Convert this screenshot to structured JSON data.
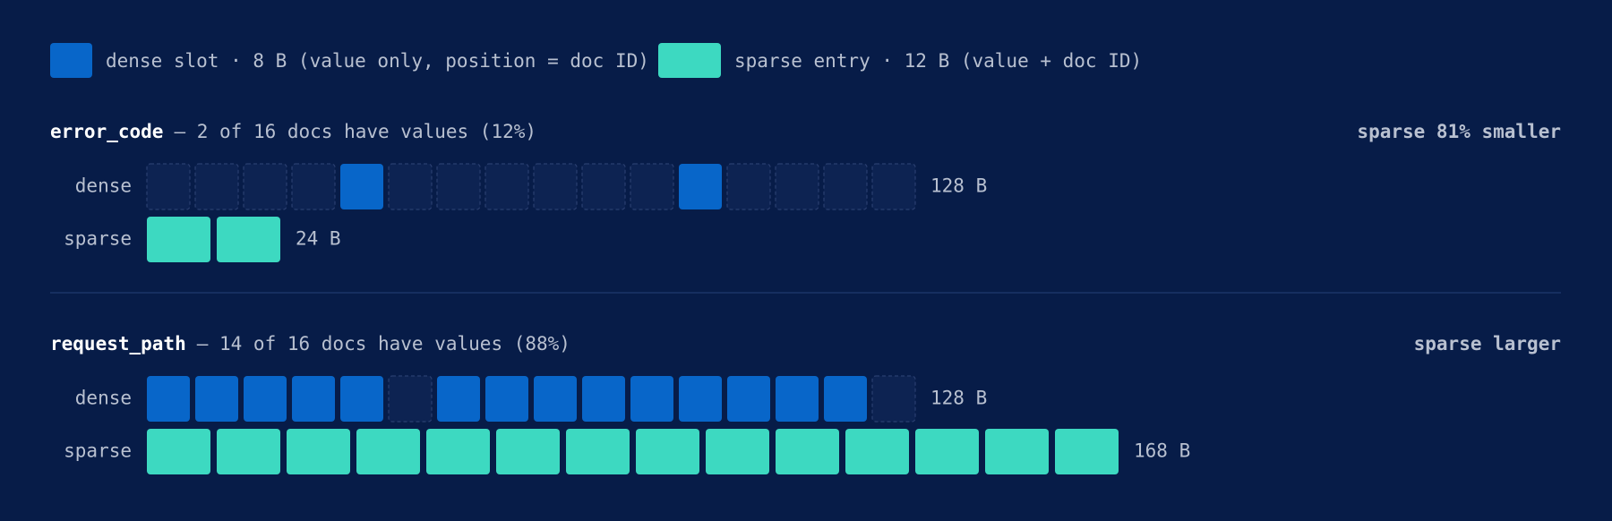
{
  "legend": [
    {
      "label": "dense slot · 8 B (value only, position = doc ID)",
      "color": "#0866c9"
    },
    {
      "label": "sparse entry · 12 B (value + doc ID)",
      "color": "#3dd9c1"
    }
  ],
  "sections": [
    {
      "field": "error_code",
      "description": "— 2 of 16 docs have values (12%)",
      "verdict": "sparse 81% smaller",
      "verdict_color": "#3dd9c1",
      "dense_label": "dense",
      "dense_slots": [
        0,
        0,
        0,
        0,
        1,
        0,
        0,
        0,
        0,
        0,
        0,
        1,
        0,
        0,
        0,
        0
      ],
      "dense_size": "128 B",
      "sparse_label": "sparse",
      "sparse_label_color": "#3dd9c1",
      "sparse_entries": 2,
      "sparse_size": "24 B"
    },
    {
      "field": "request_path",
      "description": "— 14 of 16 docs have values (88%)",
      "verdict": "sparse larger",
      "verdict_color": "#b8c0d0",
      "dense_label": "dense",
      "dense_slots": [
        1,
        1,
        1,
        1,
        1,
        0,
        1,
        1,
        1,
        1,
        1,
        1,
        1,
        1,
        1,
        0
      ],
      "dense_size": "128 B",
      "sparse_label": "sparse",
      "sparse_label_color": "#b8c0d0",
      "sparse_entries": 14,
      "sparse_size": "168 B"
    }
  ]
}
